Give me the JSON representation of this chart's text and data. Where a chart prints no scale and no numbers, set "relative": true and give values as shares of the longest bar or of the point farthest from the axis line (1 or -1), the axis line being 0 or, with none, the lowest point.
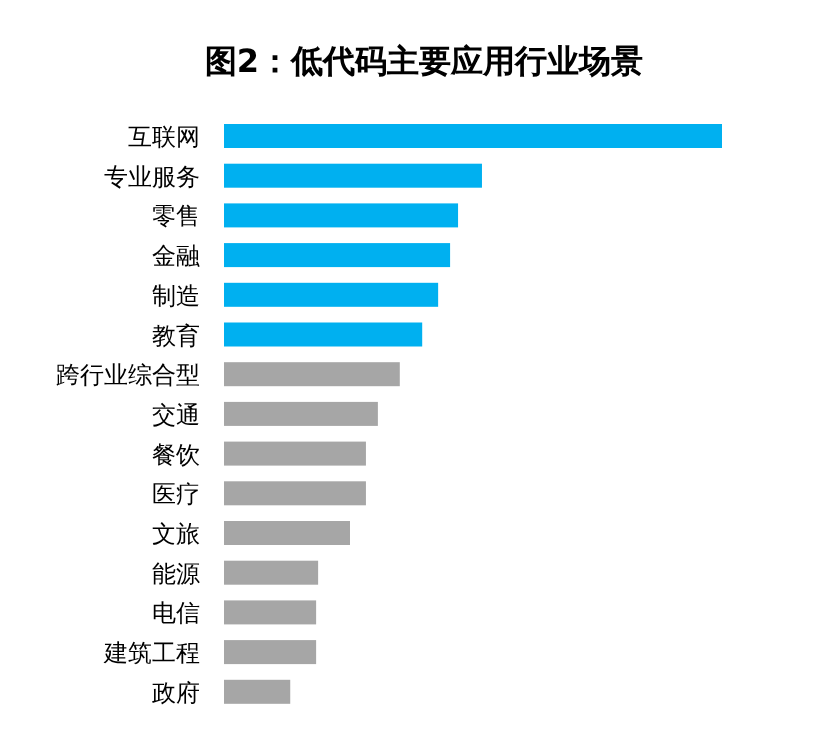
{
  "chart_data": {
    "type": "bar",
    "orientation": "horizontal",
    "relative": true,
    "title": "图2：低代码主要应用行业场景",
    "categories": [
      "互联网",
      "专业服务",
      "零售",
      "金融",
      "制造",
      "教育",
      "跨行业综合型",
      "交通",
      "餐饮",
      "医疗",
      "文旅",
      "能源",
      "电信",
      "建筑工程",
      "政府"
    ],
    "values": [
      1,
      0.518,
      0.47,
      0.454,
      0.43,
      0.398,
      0.353,
      0.309,
      0.285,
      0.285,
      0.253,
      0.189,
      0.185,
      0.185,
      0.133
    ],
    "colors": [
      "#00b0f0",
      "#00b0f0",
      "#00b0f0",
      "#00b0f0",
      "#00b0f0",
      "#00b0f0",
      "#a6a6a6",
      "#a6a6a6",
      "#a6a6a6",
      "#a6a6a6",
      "#a6a6a6",
      "#a6a6a6",
      "#a6a6a6",
      "#a6a6a6",
      "#a6a6a6"
    ]
  }
}
